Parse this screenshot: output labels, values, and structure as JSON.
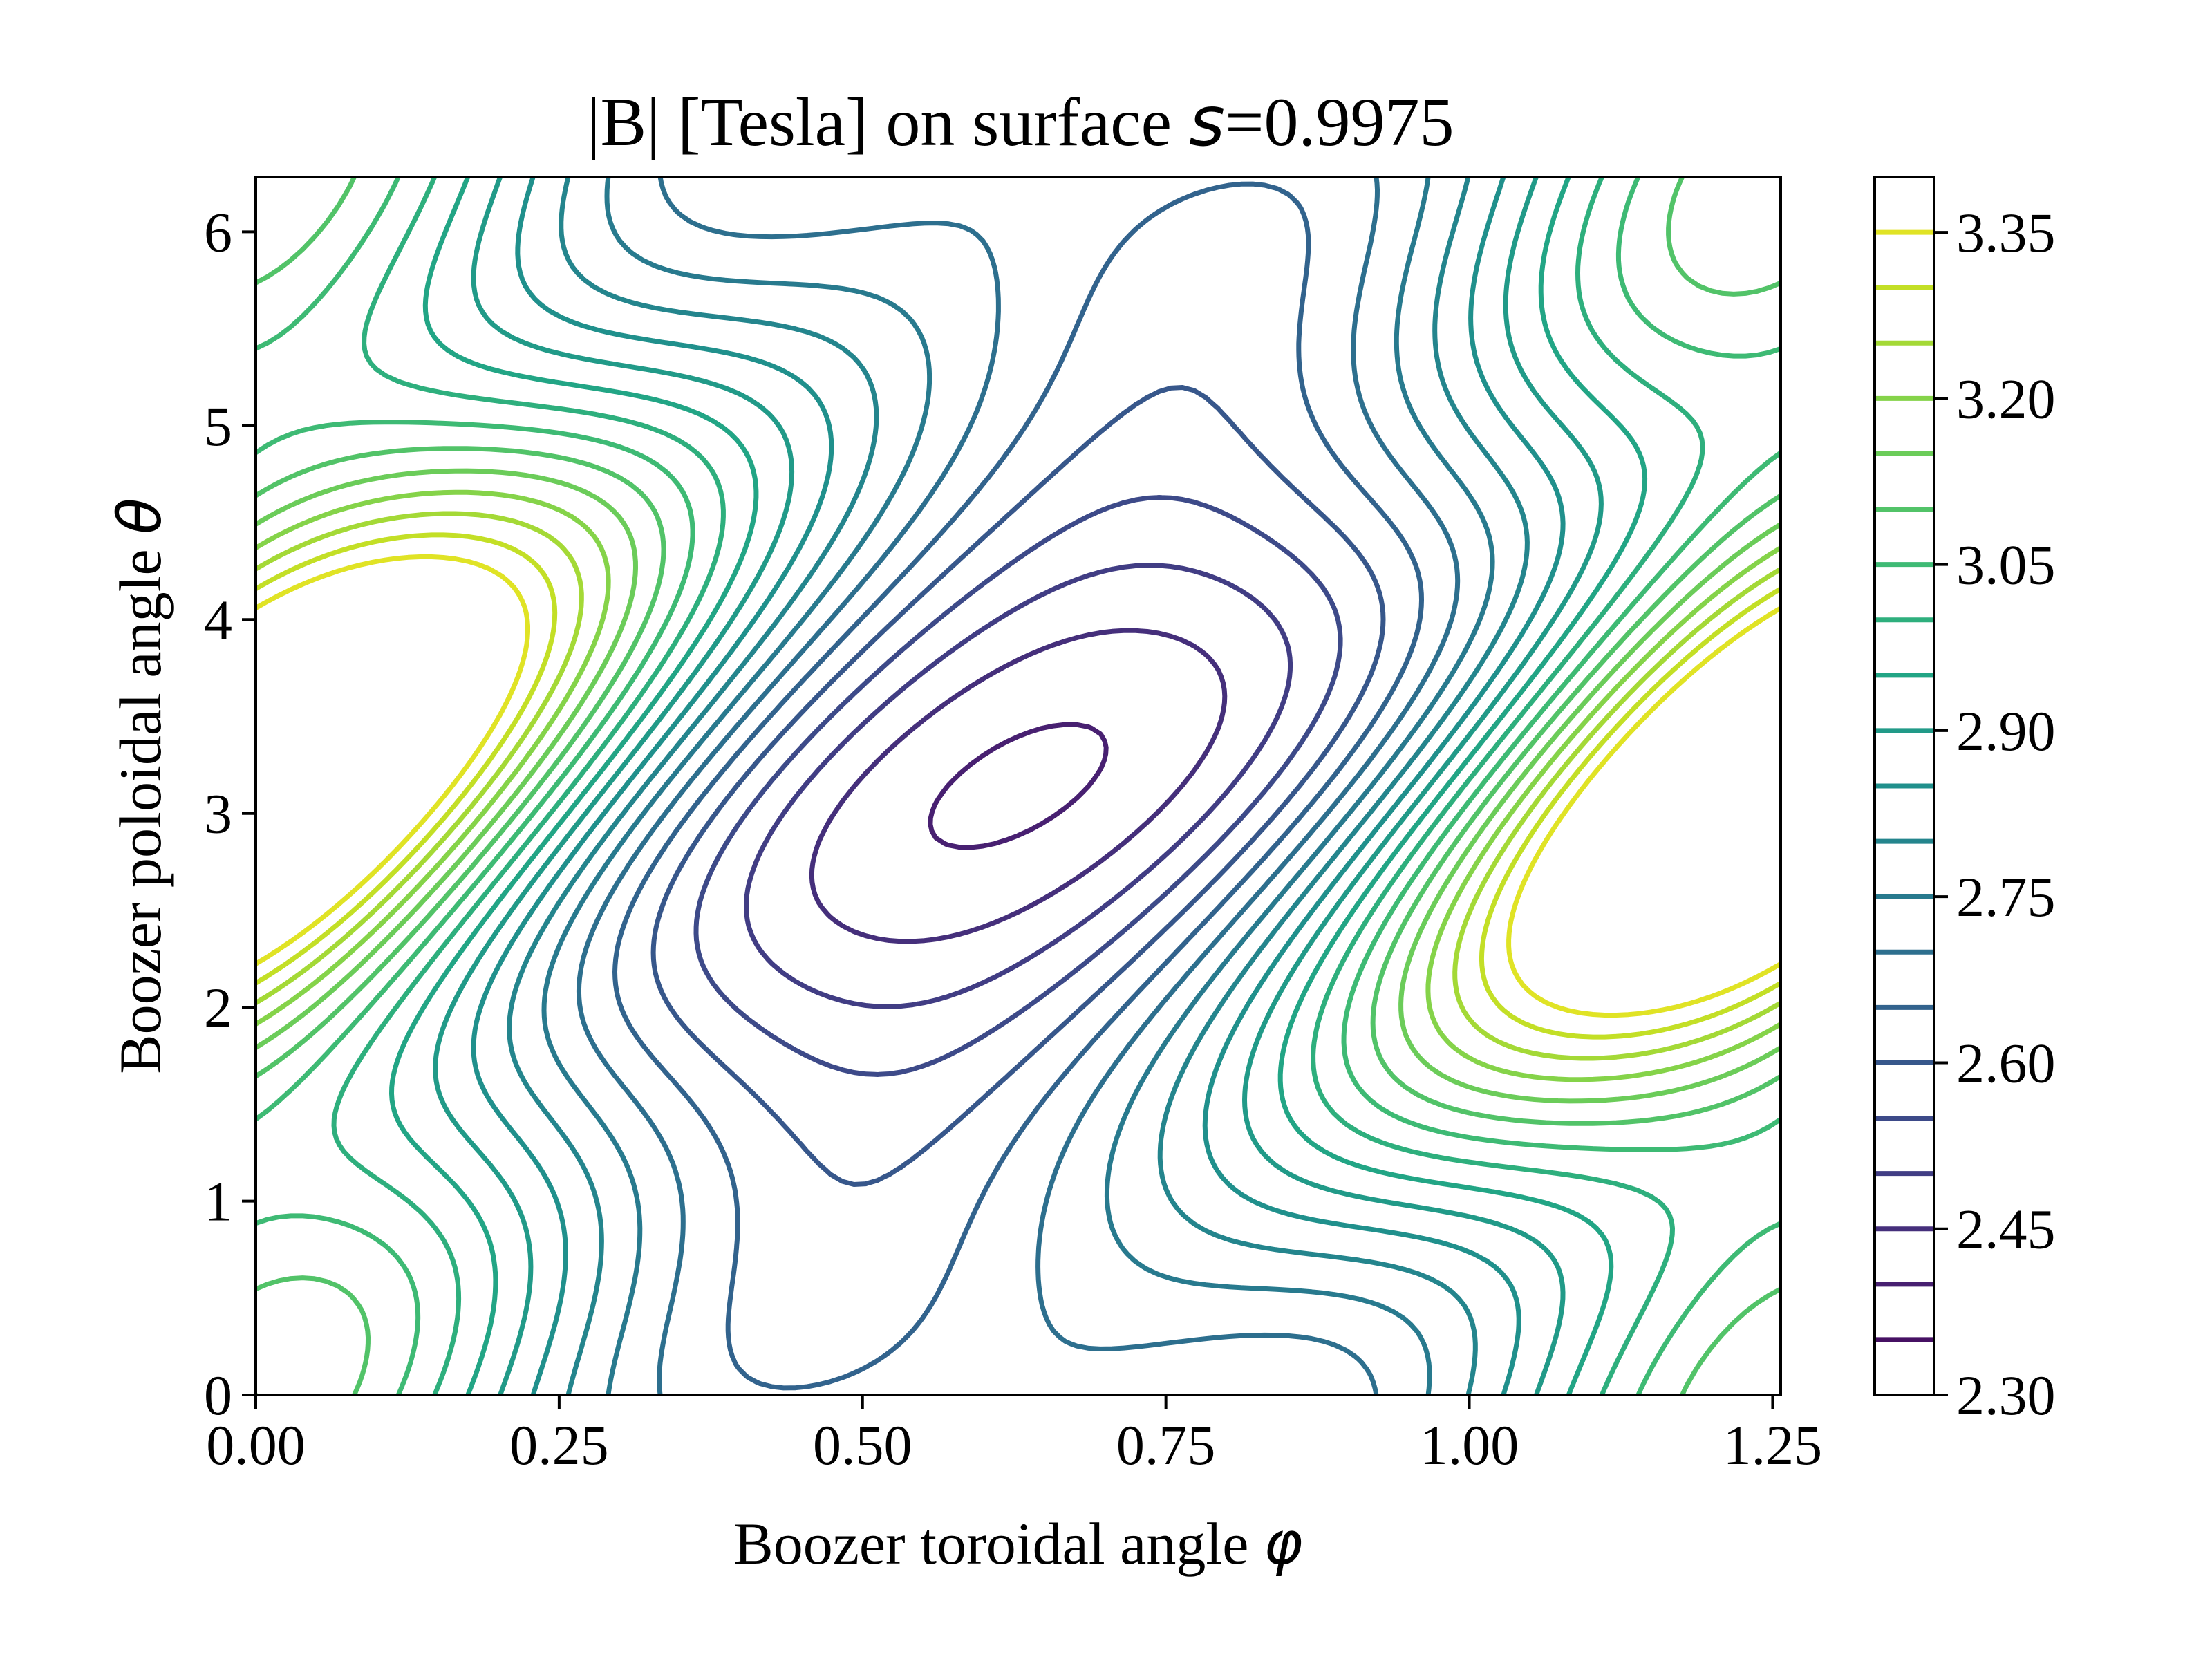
{
  "chart_data": {
    "type": "contour",
    "title_prefix": "|B| [Tesla] on surface ",
    "title_symbol": "s",
    "title_suffix": "=0.9975",
    "xlabel_text": "Boozer toroidal angle ",
    "xlabel_symbol": "φ",
    "ylabel_text": "Boozer poloidal angle ",
    "ylabel_symbol": "θ",
    "xlim": [
      0,
      1.2566
    ],
    "ylim": [
      0,
      6.2832
    ],
    "xticks": [
      0,
      0.25,
      0.5,
      0.75,
      1.0,
      1.25
    ],
    "xtick_labels": [
      "0.00",
      "0.25",
      "0.50",
      "0.75",
      "1.00",
      "1.25"
    ],
    "yticks": [
      0,
      1,
      2,
      3,
      4,
      5,
      6
    ],
    "ytick_labels": [
      "0",
      "1",
      "2",
      "3",
      "4",
      "5",
      "6"
    ],
    "colorbar": {
      "levels": [
        2.3,
        2.35,
        2.4,
        2.45,
        2.5,
        2.55,
        2.6,
        2.65,
        2.7,
        2.75,
        2.8,
        2.85,
        2.9,
        2.95,
        3.0,
        3.05,
        3.1,
        3.15,
        3.2,
        3.25,
        3.3,
        3.35,
        3.4
      ],
      "ticks": [
        2.3,
        2.45,
        2.6,
        2.75,
        2.9,
        3.05,
        3.2,
        3.35
      ],
      "tick_labels": [
        "2.30",
        "2.45",
        "2.60",
        "2.75",
        "2.90",
        "3.05",
        "3.20",
        "3.35"
      ],
      "colormap": "viridis"
    },
    "grid": false,
    "legend": "none"
  }
}
